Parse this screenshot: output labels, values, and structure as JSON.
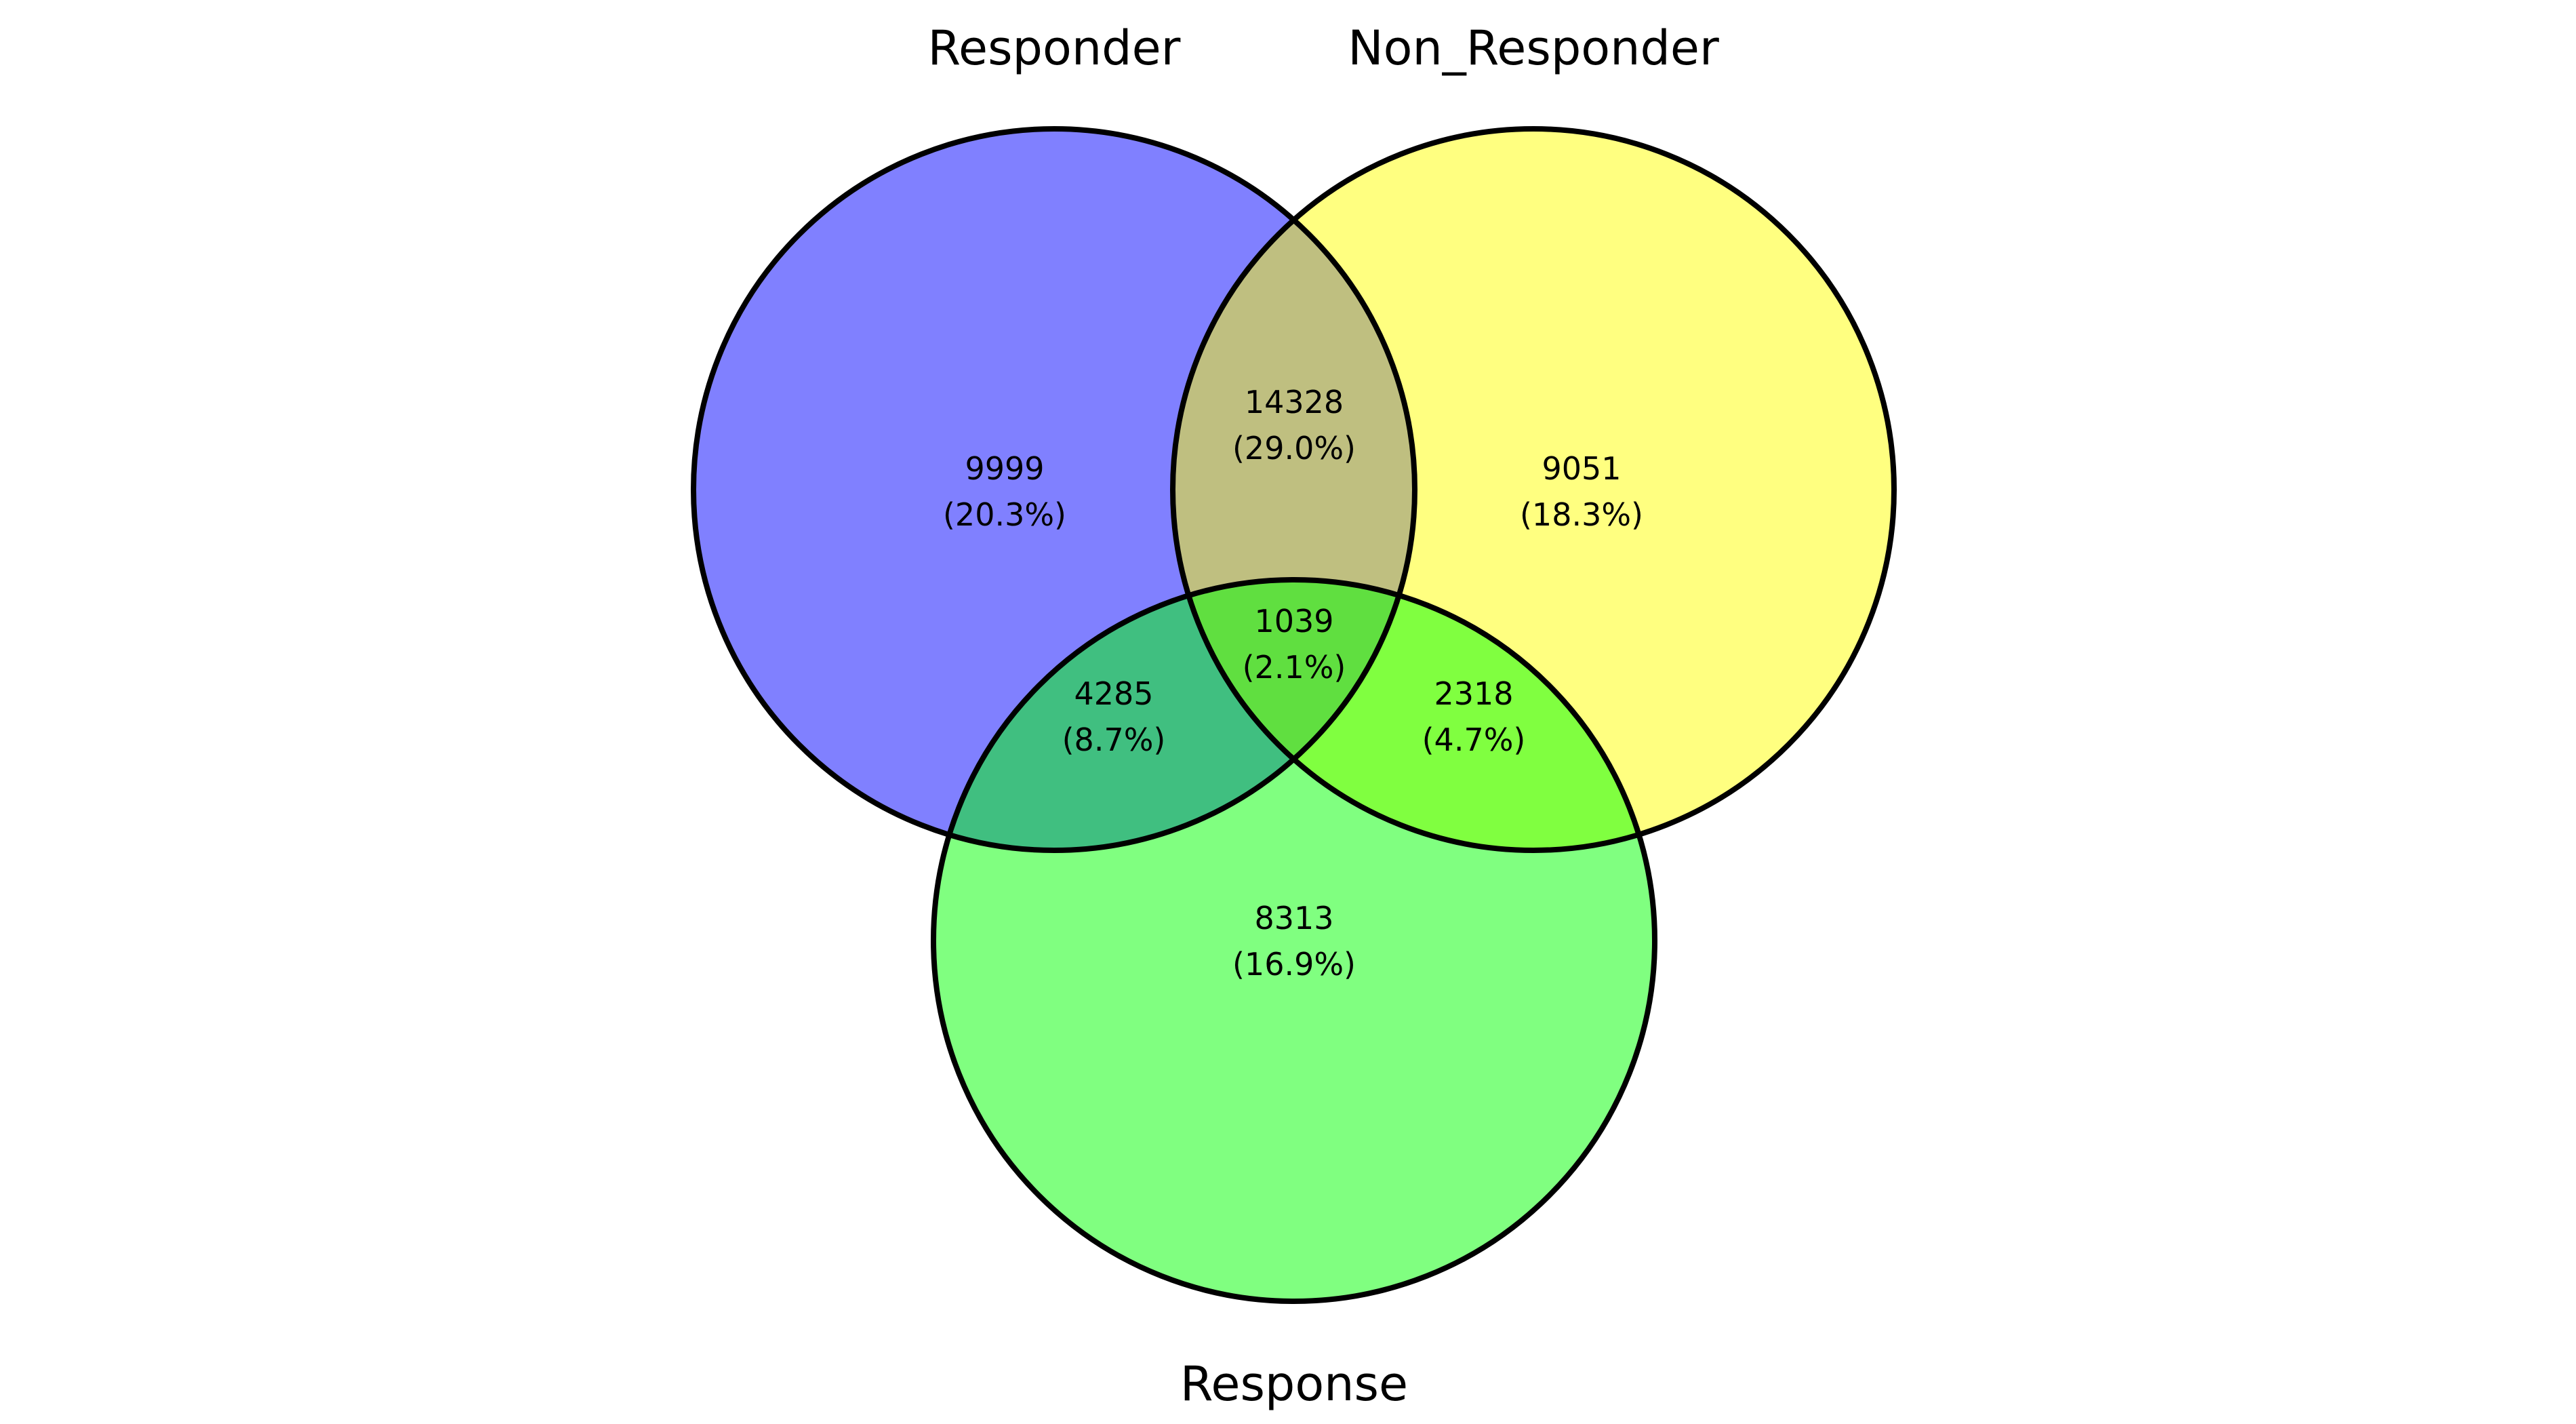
{
  "diagram": {
    "type": "venn3",
    "sets": [
      {
        "name": "Responder",
        "color": "#8080ff"
      },
      {
        "name": "Non_Responder",
        "color": "#ffff80"
      },
      {
        "name": "Response",
        "color": "#80ff80"
      }
    ],
    "regions": {
      "responder_only": {
        "count": "9999",
        "percent": "(20.3%)",
        "color": "#8080ff"
      },
      "non_responder_only": {
        "count": "9051",
        "percent": "(18.3%)",
        "color": "#ffff80"
      },
      "response_only": {
        "count": "8313",
        "percent": "(16.9%)",
        "color": "#80ff80"
      },
      "responder_non_responder": {
        "count": "14328",
        "percent": "(29.0%)",
        "color": "#bfbf80"
      },
      "responder_response": {
        "count": "4285",
        "percent": "(8.7%)",
        "color": "#40bf80"
      },
      "non_responder_response": {
        "count": "2318",
        "percent": "(4.7%)",
        "color": "#80ff40"
      },
      "all_three": {
        "count": "1039",
        "percent": "(2.1%)",
        "color": "#60df40"
      }
    },
    "outline_color": "#000000"
  }
}
